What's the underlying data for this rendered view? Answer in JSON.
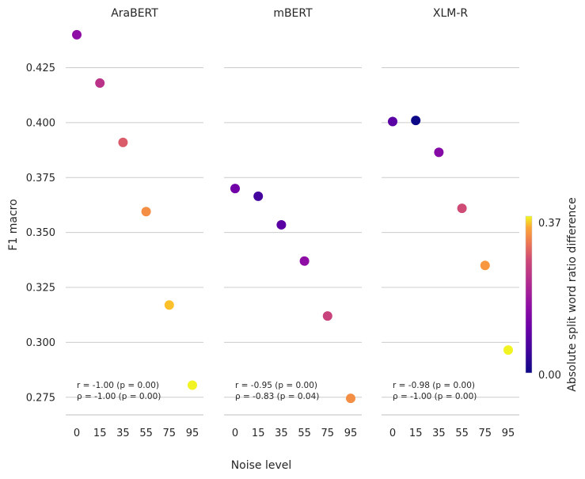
{
  "chart_data": {
    "type": "scatter",
    "xlabel": "Noise level",
    "ylabel": "F1 macro",
    "x_ticks": [
      0,
      15,
      35,
      55,
      75,
      95
    ],
    "y_ticks": [
      "0.275",
      "0.300",
      "0.325",
      "0.350",
      "0.375",
      "0.400",
      "0.425"
    ],
    "ylim": [
      0.267,
      0.445
    ],
    "grid": "horizontal",
    "colorbar": {
      "label": "Absolute split word ratio difference",
      "min": 0.0,
      "max": 0.37,
      "min_label": "0.00",
      "max_label": "0.37",
      "colormap": "plasma"
    },
    "panels": [
      {
        "title": "AraBERT",
        "points": [
          {
            "x": 0,
            "y": 0.44,
            "c": 0.11
          },
          {
            "x": 15,
            "y": 0.418,
            "c": 0.16
          },
          {
            "x": 35,
            "y": 0.391,
            "c": 0.21
          },
          {
            "x": 55,
            "y": 0.3595,
            "c": 0.27
          },
          {
            "x": 75,
            "y": 0.317,
            "c": 0.32
          },
          {
            "x": 95,
            "y": 0.2805,
            "c": 0.365
          }
        ],
        "stats": [
          "r = -1.00 (p = 0.00)",
          "ρ = -1.00 (p = 0.00)"
        ]
      },
      {
        "title": "mBERT",
        "points": [
          {
            "x": 0,
            "y": 0.37,
            "c": 0.08
          },
          {
            "x": 15,
            "y": 0.3665,
            "c": 0.04
          },
          {
            "x": 35,
            "y": 0.3535,
            "c": 0.06
          },
          {
            "x": 55,
            "y": 0.337,
            "c": 0.11
          },
          {
            "x": 75,
            "y": 0.312,
            "c": 0.18
          },
          {
            "x": 95,
            "y": 0.2745,
            "c": 0.27
          }
        ],
        "stats": [
          "r = -0.95 (p = 0.00)",
          "ρ = -0.83 (p = 0.04)"
        ]
      },
      {
        "title": "XLM-R",
        "points": [
          {
            "x": 0,
            "y": 0.4005,
            "c": 0.06
          },
          {
            "x": 15,
            "y": 0.401,
            "c": 0.0
          },
          {
            "x": 35,
            "y": 0.3865,
            "c": 0.1
          },
          {
            "x": 55,
            "y": 0.361,
            "c": 0.19
          },
          {
            "x": 75,
            "y": 0.335,
            "c": 0.28
          },
          {
            "x": 95,
            "y": 0.2965,
            "c": 0.365
          }
        ],
        "stats": [
          "r = -0.98 (p = 0.00)",
          "ρ = -1.00 (p = 0.00)"
        ]
      }
    ]
  }
}
